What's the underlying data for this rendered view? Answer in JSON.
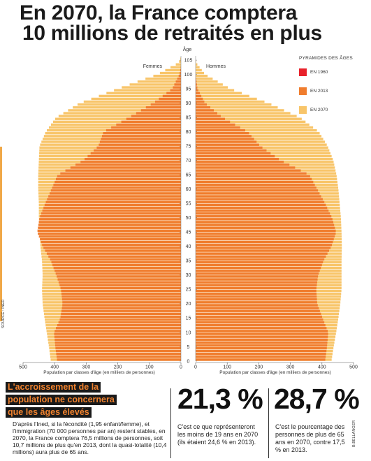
{
  "title": {
    "line1": "En 2070, la France comptera",
    "line2": "10 millions de retraités en plus"
  },
  "legend": {
    "title": "PYRAMIDES DES ÂGES",
    "items": [
      {
        "label": "EN 1960",
        "color": "#e8222b"
      },
      {
        "label": "EN 2013",
        "color": "#f07d2e"
      },
      {
        "label": "EN 2070",
        "color": "#f8c56a"
      }
    ]
  },
  "source": "SOURCE : INED",
  "callout_lines": [
    "L'accroissement de la",
    "population ne concernera",
    "que les âges élevés"
  ],
  "paragraph": "D'après l'Ined, si la fécondité (1,95 enfant/femme), et l'immigration (70 000 personnes par an) restent stables, en 2070, la France comptera 76,5 millions de personnes, soit 10,7 millions de plus qu'en 2013, dont la quasi-totalité (10,4 millions) aura plus de 65 ans.",
  "stats": [
    {
      "value": "21,3 %",
      "text": "C'est ce que représenteront les moins de 19 ans en 2070 (ils étaient 24,6 % en 2013)."
    },
    {
      "value": "28,7 %",
      "text": "C'est le pourcentage des personnes de plus de 65 ans en 2070, contre 17,5 % en 2013."
    }
  ],
  "credit": "B.BELLANGER",
  "chart_data": {
    "type": "bar",
    "orientation": "horizontal-pyramid",
    "age_axis_label": "Âge",
    "age_ticks": [
      0,
      5,
      10,
      15,
      20,
      25,
      30,
      35,
      40,
      45,
      50,
      55,
      60,
      65,
      70,
      75,
      80,
      85,
      90,
      95,
      100,
      105
    ],
    "side_labels": {
      "left": "Femmes",
      "right": "Hommes"
    },
    "xlabel": "Population par classes d'âge (en milliers de personnes)",
    "xticks": [
      0,
      100,
      200,
      300,
      400,
      500
    ],
    "xlim": [
      0,
      500
    ],
    "age_min": 0,
    "age_max": 106,
    "series": [
      {
        "name": "EN 2070",
        "color": "#f8c56a",
        "women": [
          [
            0,
            412
          ],
          [
            5,
            418
          ],
          [
            10,
            425
          ],
          [
            15,
            432
          ],
          [
            20,
            438
          ],
          [
            25,
            440
          ],
          [
            30,
            438
          ],
          [
            35,
            440
          ],
          [
            40,
            445
          ],
          [
            45,
            448
          ],
          [
            50,
            450
          ],
          [
            55,
            450
          ],
          [
            60,
            452
          ],
          [
            65,
            452
          ],
          [
            70,
            450
          ],
          [
            75,
            448
          ],
          [
            80,
            428
          ],
          [
            85,
            395
          ],
          [
            90,
            320
          ],
          [
            95,
            200
          ],
          [
            100,
            75
          ],
          [
            104,
            8
          ],
          [
            106,
            0
          ]
        ],
        "men": [
          [
            0,
            430
          ],
          [
            5,
            437
          ],
          [
            10,
            445
          ],
          [
            15,
            452
          ],
          [
            20,
            458
          ],
          [
            25,
            462
          ],
          [
            30,
            462
          ],
          [
            35,
            462
          ],
          [
            40,
            463
          ],
          [
            45,
            462
          ],
          [
            50,
            460
          ],
          [
            55,
            456
          ],
          [
            60,
            452
          ],
          [
            65,
            446
          ],
          [
            70,
            436
          ],
          [
            75,
            418
          ],
          [
            80,
            390
          ],
          [
            85,
            330
          ],
          [
            90,
            230
          ],
          [
            95,
            110
          ],
          [
            100,
            30
          ],
          [
            104,
            2
          ],
          [
            106,
            0
          ]
        ]
      },
      {
        "name": "EN 2013",
        "color": "#f07d2e",
        "women": [
          [
            0,
            392
          ],
          [
            5,
            398
          ],
          [
            10,
            402
          ],
          [
            15,
            382
          ],
          [
            20,
            375
          ],
          [
            25,
            380
          ],
          [
            30,
            395
          ],
          [
            35,
            412
          ],
          [
            40,
            438
          ],
          [
            45,
            455
          ],
          [
            50,
            448
          ],
          [
            55,
            430
          ],
          [
            60,
            410
          ],
          [
            65,
            390
          ],
          [
            70,
            310
          ],
          [
            75,
            262
          ],
          [
            80,
            245
          ],
          [
            85,
            165
          ],
          [
            90,
            88
          ],
          [
            95,
            28
          ],
          [
            100,
            5
          ],
          [
            103,
            0
          ]
        ],
        "men": [
          [
            0,
            410
          ],
          [
            5,
            416
          ],
          [
            10,
            420
          ],
          [
            15,
            402
          ],
          [
            20,
            385
          ],
          [
            25,
            382
          ],
          [
            30,
            388
          ],
          [
            35,
            405
          ],
          [
            40,
            430
          ],
          [
            45,
            445
          ],
          [
            50,
            432
          ],
          [
            55,
            410
          ],
          [
            60,
            385
          ],
          [
            65,
            360
          ],
          [
            70,
            270
          ],
          [
            75,
            205
          ],
          [
            80,
            165
          ],
          [
            85,
            85
          ],
          [
            90,
            30
          ],
          [
            95,
            6
          ],
          [
            100,
            0
          ]
        ]
      },
      {
        "name": "EN 1960",
        "color": "#e8222b",
        "women": [
          [
            0,
            0
          ]
        ],
        "men": [
          [
            0,
            0
          ]
        ]
      }
    ]
  }
}
